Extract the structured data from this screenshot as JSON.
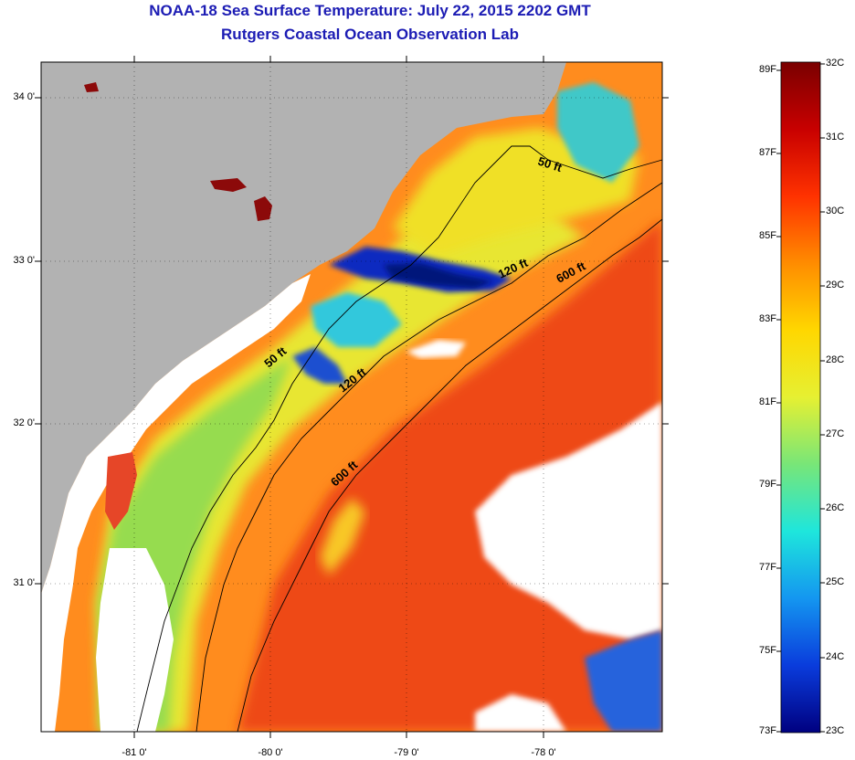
{
  "title_line1": "NOAA-18 Sea Surface Temperature:  July 22, 2015 2202 GMT",
  "title_line2": "Rutgers Coastal Ocean Observation Lab",
  "latitude_labels": [
    "34 0'",
    "33 0'",
    "32 0'",
    "31 0'"
  ],
  "latitude_values": [
    34,
    33,
    32,
    31
  ],
  "longitude_labels": [
    "-81 0'",
    "-80 0'",
    "-79 0'",
    "-78 0'"
  ],
  "longitude_values": [
    -81,
    -80,
    -79,
    -78
  ],
  "map_extent": {
    "lon_min": -81.68,
    "lon_max": -77.1,
    "lat_min": 30.17,
    "lat_max": 34.2
  },
  "contour_labels": {
    "c50_north": "50 ft",
    "c50_south": "50 ft",
    "c120_north": "120 ft",
    "c120_south": "120 ft",
    "c600_north": "600 ft",
    "c600_south": "600 ft"
  },
  "colorbar": {
    "fahrenheit": [
      "89F",
      "87F",
      "85F",
      "83F",
      "81F",
      "79F",
      "77F",
      "75F",
      "73F"
    ],
    "celsius": [
      "32C",
      "31C",
      "30C",
      "29C",
      "28C",
      "27C",
      "26C",
      "25C",
      "24C",
      "23C"
    ],
    "min_c": 23,
    "max_c": 32
  },
  "colors": {
    "land": "#b2b2b2",
    "cloud": "#ffffff",
    "warm": "#f05a1e",
    "mid": "#ff9a1e",
    "yellow": "#f0f028",
    "green": "#8ce650",
    "cyan": "#32c8e6",
    "blue": "#0a32c8",
    "darkblue": "#00148c",
    "darkred": "#8c0a0a"
  }
}
